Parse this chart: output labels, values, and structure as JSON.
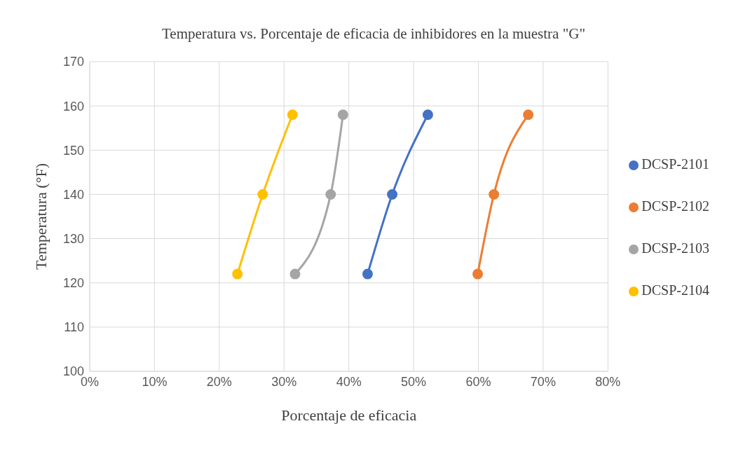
{
  "chart_data": {
    "type": "line",
    "title": "Temperatura vs. Porcentaje de eficacia de inhibidores en la muestra \"G\"",
    "xlabel": "Porcentaje de eficacia",
    "ylabel": "Temperatura (°F)",
    "series": [
      {
        "name": "DCSP-2101",
        "color": "#4472c4",
        "x": [
          42.9,
          46.7,
          52.2
        ],
        "values": [
          122,
          140,
          158
        ]
      },
      {
        "name": "DCSP-2102",
        "color": "#ed7d31",
        "x": [
          59.9,
          62.4,
          67.7
        ],
        "values": [
          122,
          140,
          158
        ]
      },
      {
        "name": "DCSP-2103",
        "color": "#a5a5a5",
        "x": [
          31.7,
          37.2,
          39.1
        ],
        "values": [
          122,
          140,
          158
        ]
      },
      {
        "name": "DCSP-2104",
        "color": "#ffc000",
        "x": [
          22.8,
          26.7,
          31.3
        ],
        "values": [
          122,
          140,
          158
        ]
      }
    ],
    "xlim": [
      0,
      80
    ],
    "xticks": [
      {
        "value": 0,
        "label": "0%"
      },
      {
        "value": 10,
        "label": "10%"
      },
      {
        "value": 20,
        "label": "20%"
      },
      {
        "value": 30,
        "label": "30%"
      },
      {
        "value": 40,
        "label": "40%"
      },
      {
        "value": 50,
        "label": "50%"
      },
      {
        "value": 60,
        "label": "60%"
      },
      {
        "value": 70,
        "label": "70%"
      },
      {
        "value": 80,
        "label": "80%"
      }
    ],
    "ylim": [
      100,
      170
    ],
    "yticks": [
      100,
      110,
      120,
      130,
      140,
      150,
      160,
      170
    ],
    "grid": true,
    "legend": "right",
    "marker": "circle",
    "line_style": "solid"
  }
}
